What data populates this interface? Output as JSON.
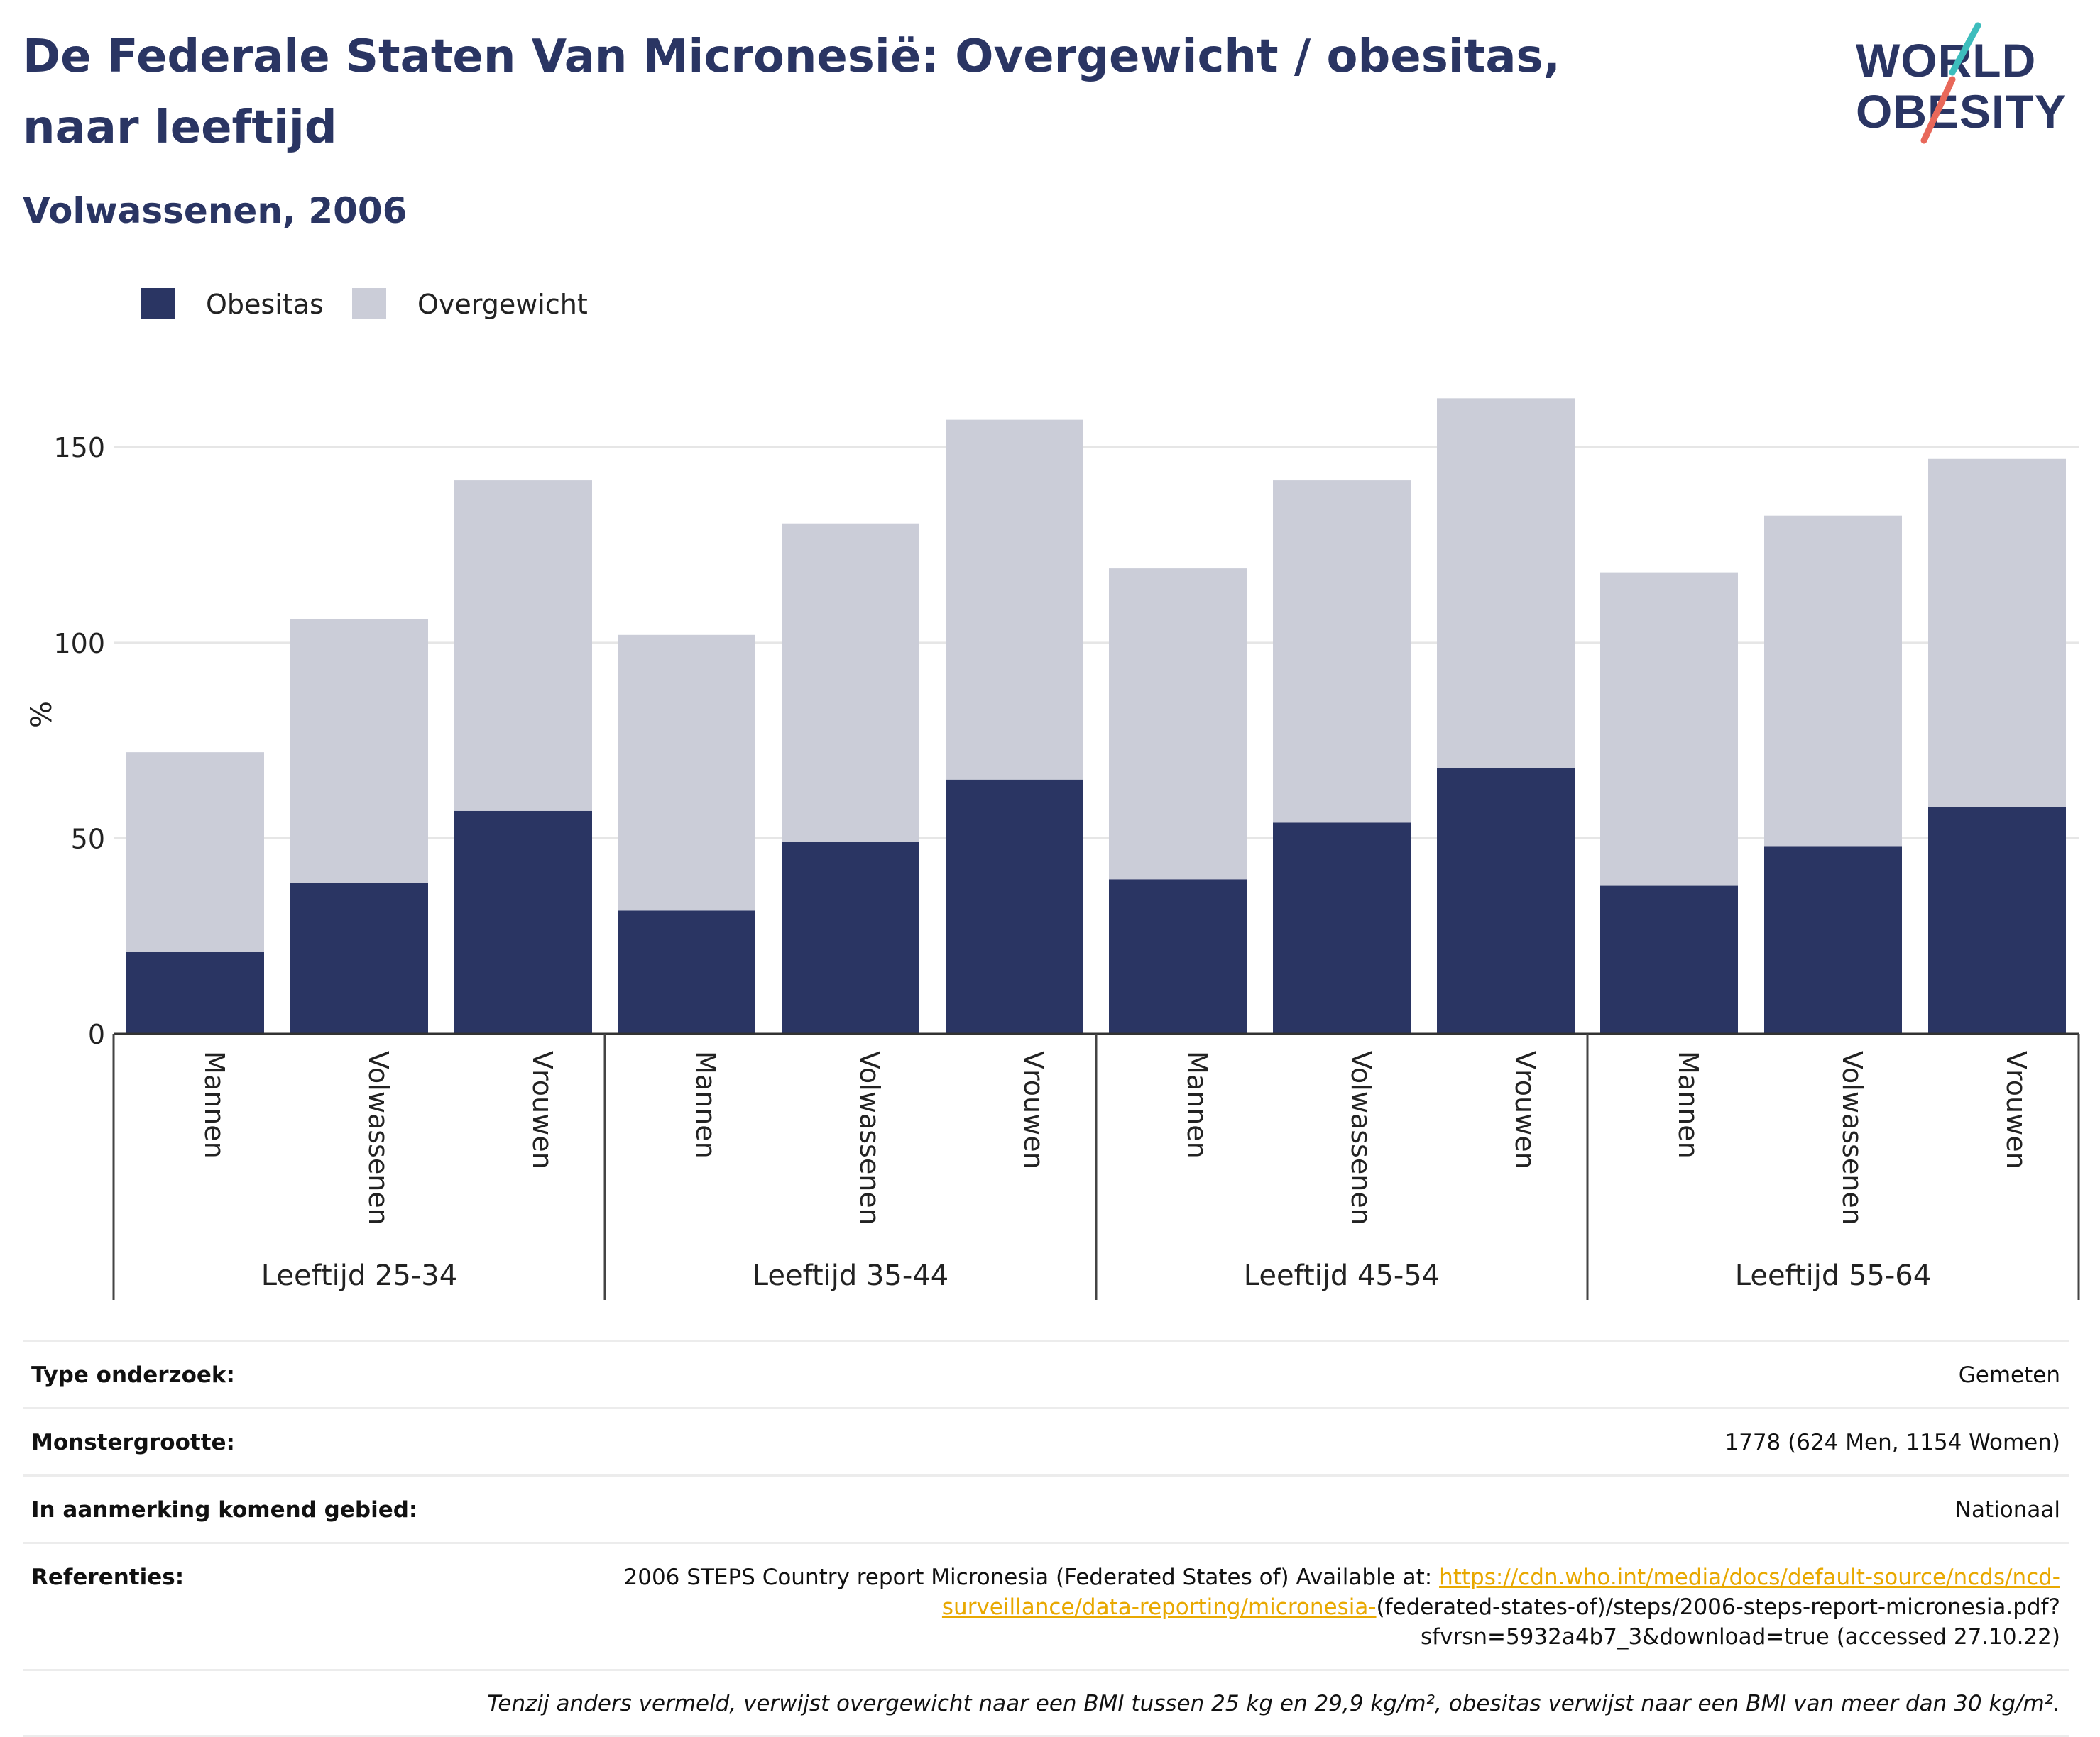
{
  "header": {
    "title": "De Federale Staten Van Micronesië: Overgewicht / obesitas, naar leeftijd",
    "subtitle": "Volwassenen, 2006"
  },
  "logo": {
    "line1": "WORLD",
    "line2": "OBESITY"
  },
  "colors": {
    "obesitas": "#2a3563",
    "overgewicht": "#cbcdd8",
    "link": "#e8a800",
    "title": "#2a3563"
  },
  "chart_data": {
    "type": "bar",
    "stacked": true,
    "ylabel": "%",
    "ylim": [
      0,
      170
    ],
    "yticks": [
      0,
      50,
      100,
      150
    ],
    "grid": true,
    "legend_position": "top-left",
    "groups": [
      {
        "label": "Leeftijd 25-34",
        "categories": [
          "Mannen",
          "Volwassenen",
          "Vrouwen"
        ]
      },
      {
        "label": "Leeftijd 35-44",
        "categories": [
          "Mannen",
          "Volwassenen",
          "Vrouwen"
        ]
      },
      {
        "label": "Leeftijd 45-54",
        "categories": [
          "Mannen",
          "Volwassenen",
          "Vrouwen"
        ]
      },
      {
        "label": "Leeftijd 55-64",
        "categories": [
          "Mannen",
          "Volwassenen",
          "Vrouwen"
        ]
      }
    ],
    "series": [
      {
        "name": "Obesitas",
        "color": "#2a3563",
        "values": [
          21,
          38.5,
          57,
          31.5,
          49,
          65,
          39.5,
          54,
          68,
          38,
          48,
          58
        ]
      },
      {
        "name": "Overgewicht",
        "color": "#cbcdd8",
        "values": [
          51,
          67.5,
          84.5,
          70.5,
          81.5,
          92,
          79.5,
          87.5,
          94.5,
          80,
          84.5,
          89
        ]
      }
    ]
  },
  "meta": {
    "rows": [
      {
        "label": "Type onderzoek:",
        "value": "Gemeten"
      },
      {
        "label": "Monstergrootte:",
        "value": "1778 (624 Men, 1154 Women)"
      },
      {
        "label": "In aanmerking komend gebied:",
        "value": "Nationaal"
      }
    ],
    "references": {
      "label": "Referenties:",
      "text_before": "2006 STEPS Country report Micronesia (Federated States of) Available at: ",
      "link_text": "https://cdn.who.int/media/docs/default-source/ncds/ncd-surveillance/data-reporting/micronesia-",
      "text_after": "(federated-states-of)/steps/2006-steps-report-micronesia.pdf?sfvrsn=5932a4b7_3&download=true (accessed 27.10.22)"
    },
    "note": "Tenzij anders vermeld, verwijst overgewicht naar een BMI tussen 25 kg en 29,9 kg/m², obesitas verwijst naar een BMI van meer dan 30 kg/m²."
  }
}
